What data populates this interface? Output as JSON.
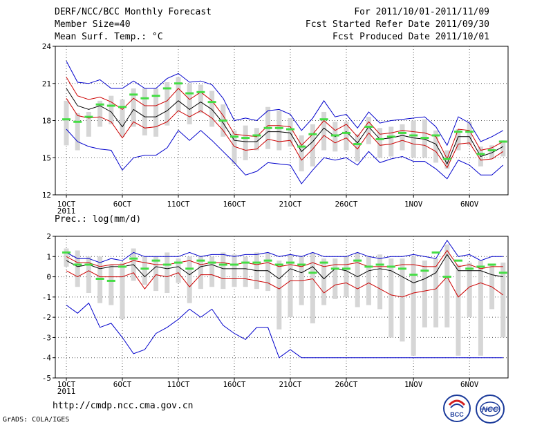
{
  "header": {
    "title": "DERF/NCC/BCC Monthly Forecast",
    "member": "Member Size=40",
    "variable": "Mean Surf. Temp.: °C",
    "period": "For 2011/10/01-2011/11/09",
    "fcst_started": "Fcst Started Refer Date 2011/09/30",
    "fcst_produced": "Fcst Produced Date 2011/10/01"
  },
  "colors": {
    "ensemble_max": "#0000cc",
    "ensemble_min": "#0000cc",
    "spread": "#cc0000",
    "mean": "#000000",
    "box": "#d6d6d6",
    "marker": "#44dd44"
  },
  "chart_data": [
    {
      "type": "line",
      "title": "Mean Surf. Temp.: °C",
      "ylim": [
        12,
        24
      ],
      "yticks": [
        12,
        15,
        18,
        21,
        24
      ],
      "xtick_labels": [
        "1OCT",
        "6OCT",
        "11OCT",
        "16OCT",
        "21OCT",
        "26OCT",
        "1NOV",
        "6NOV"
      ],
      "xtick_days": [
        1,
        6,
        11,
        16,
        21,
        26,
        32,
        37
      ],
      "year_label": "2011",
      "x_days": [
        1,
        2,
        3,
        4,
        5,
        6,
        7,
        8,
        9,
        10,
        11,
        12,
        13,
        14,
        15,
        16,
        17,
        18,
        19,
        20,
        21,
        22,
        23,
        24,
        25,
        26,
        27,
        28,
        29,
        30,
        31,
        32,
        33,
        34,
        35,
        36,
        37,
        38,
        39,
        40
      ],
      "series": [
        {
          "name": "max",
          "values": [
            22.8,
            21.1,
            21.0,
            21.3,
            20.6,
            20.6,
            21.2,
            20.6,
            20.6,
            21.4,
            21.8,
            21.1,
            21.2,
            20.9,
            19.8,
            18.0,
            18.2,
            18.0,
            18.8,
            18.9,
            18.5,
            17.2,
            18.2,
            19.6,
            18.3,
            18.5,
            17.4,
            18.7,
            17.8,
            18.0,
            18.1,
            18.2,
            18.3,
            17.5,
            16.0,
            18.3,
            17.8,
            16.3,
            16.7,
            17.2
          ]
        },
        {
          "name": "spread_upper",
          "values": [
            21.5,
            20.0,
            19.7,
            19.9,
            19.5,
            18.9,
            19.8,
            19.2,
            19.2,
            19.6,
            20.6,
            19.7,
            20.3,
            19.6,
            18.4,
            16.9,
            16.8,
            16.7,
            17.6,
            17.6,
            17.5,
            16.0,
            16.9,
            18.0,
            17.2,
            17.7,
            16.7,
            17.9,
            16.9,
            17.0,
            17.2,
            17.1,
            17.0,
            16.7,
            14.9,
            17.3,
            17.2,
            15.6,
            15.8,
            16.3
          ]
        },
        {
          "name": "mean",
          "values": [
            20.6,
            19.2,
            18.9,
            19.2,
            18.7,
            17.5,
            18.9,
            18.3,
            18.3,
            18.8,
            19.6,
            18.9,
            19.5,
            18.9,
            17.8,
            16.4,
            16.3,
            16.3,
            17.1,
            17.1,
            17.0,
            15.5,
            16.3,
            17.4,
            16.7,
            17.1,
            16.2,
            17.5,
            16.5,
            16.6,
            16.8,
            16.6,
            16.5,
            16.1,
            14.5,
            16.7,
            16.7,
            15.1,
            15.4,
            15.9
          ]
        },
        {
          "name": "spread_lower",
          "values": [
            19.8,
            18.4,
            18.2,
            18.3,
            17.9,
            16.6,
            17.9,
            17.4,
            17.5,
            17.9,
            18.8,
            18.3,
            18.8,
            18.2,
            17.2,
            15.9,
            15.6,
            15.7,
            16.5,
            16.3,
            16.4,
            14.8,
            15.7,
            16.8,
            16.2,
            16.6,
            15.7,
            17.0,
            16.0,
            16.1,
            16.4,
            16.1,
            16.0,
            15.5,
            14.2,
            16.1,
            16.2,
            14.8,
            14.9,
            15.5
          ]
        },
        {
          "name": "min",
          "values": [
            17.3,
            16.3,
            15.9,
            15.7,
            15.6,
            14.0,
            15.0,
            15.2,
            15.2,
            15.8,
            17.2,
            16.4,
            17.2,
            16.4,
            15.5,
            14.6,
            13.6,
            13.9,
            14.6,
            14.5,
            14.4,
            12.9,
            14.0,
            15.0,
            14.8,
            15.0,
            14.4,
            15.5,
            14.6,
            14.9,
            15.1,
            14.7,
            14.7,
            14.1,
            13.3,
            14.8,
            14.4,
            13.6,
            13.6,
            14.4
          ]
        },
        {
          "name": "box_top",
          "values": [
            19.6,
            18.6,
            18.7,
            19.6,
            20.0,
            19.7,
            20.6,
            20.6,
            20.6,
            21.1,
            21.5,
            21.0,
            20.9,
            20.4,
            19.3,
            17.2,
            17.6,
            17.4,
            19.1,
            18.8,
            18.2,
            16.8,
            17.7,
            18.7,
            17.9,
            17.9,
            16.9,
            18.3,
            17.4,
            17.5,
            17.7,
            18.0,
            18.1,
            17.2,
            15.6,
            17.3,
            17.9,
            15.9,
            16.0,
            16.4
          ]
        },
        {
          "name": "box_bottom",
          "values": [
            16.0,
            15.6,
            16.7,
            17.5,
            17.7,
            16.7,
            17.5,
            16.8,
            16.7,
            17.6,
            18.7,
            17.7,
            18.6,
            17.5,
            16.7,
            14.5,
            14.8,
            15.6,
            15.7,
            15.6,
            15.9,
            13.9,
            14.3,
            15.6,
            15.5,
            15.6,
            14.7,
            16.1,
            15.0,
            15.1,
            15.6,
            15.0,
            15.0,
            14.6,
            14.1,
            15.6,
            16.0,
            14.3,
            14.9,
            15.1
          ]
        },
        {
          "name": "marker",
          "values": [
            18.1,
            17.9,
            18.3,
            19.3,
            19.2,
            19.1,
            20.1,
            19.8,
            20.0,
            20.6,
            21.0,
            20.2,
            20.3,
            19.5,
            18.0,
            16.7,
            16.6,
            16.8,
            17.4,
            17.4,
            17.3,
            15.9,
            16.9,
            18.1,
            16.8,
            17.0,
            16.1,
            17.5,
            16.5,
            16.7,
            17.0,
            16.8,
            16.6,
            16.8,
            14.9,
            17.1,
            17.1,
            15.3,
            15.6,
            16.3
          ]
        }
      ]
    },
    {
      "type": "line",
      "title": "Prec.: log(mm/d)",
      "ylim": [
        -5,
        2
      ],
      "yticks": [
        -5,
        -4,
        -3,
        -2,
        -1,
        0,
        1,
        2
      ],
      "xtick_labels": [
        "1OCT",
        "6OCT",
        "11OCT",
        "16OCT",
        "21OCT",
        "26OCT",
        "1NOV",
        "6NOV"
      ],
      "xtick_days": [
        1,
        6,
        11,
        16,
        21,
        26,
        32,
        37
      ],
      "year_label": "2011",
      "x_days": [
        1,
        2,
        3,
        4,
        5,
        6,
        7,
        8,
        9,
        10,
        11,
        12,
        13,
        14,
        15,
        16,
        17,
        18,
        19,
        20,
        21,
        22,
        23,
        24,
        25,
        26,
        27,
        28,
        29,
        30,
        31,
        32,
        33,
        34,
        35,
        36,
        37,
        38,
        39,
        40
      ],
      "series": [
        {
          "name": "max",
          "values": [
            1.2,
            0.9,
            0.9,
            0.7,
            0.9,
            0.8,
            1.2,
            1.0,
            1.0,
            1.0,
            1.0,
            1.2,
            1.0,
            1.1,
            1.1,
            1.0,
            1.1,
            1.1,
            1.2,
            1.0,
            1.1,
            1.0,
            1.2,
            1.0,
            1.0,
            1.0,
            1.2,
            1.0,
            0.9,
            1.0,
            1.0,
            1.1,
            1.0,
            0.9,
            1.8,
            1.0,
            1.1,
            0.8,
            1.0,
            1.0
          ]
        },
        {
          "name": "spread_upper",
          "values": [
            1.0,
            0.7,
            0.7,
            0.5,
            0.6,
            0.6,
            0.8,
            0.7,
            0.6,
            0.6,
            0.7,
            0.8,
            0.6,
            0.7,
            0.7,
            0.6,
            0.7,
            0.6,
            0.7,
            0.5,
            0.6,
            0.5,
            0.7,
            0.5,
            0.6,
            0.6,
            0.7,
            0.5,
            0.5,
            0.5,
            0.6,
            0.6,
            0.5,
            0.5,
            1.3,
            0.5,
            0.6,
            0.4,
            0.5,
            0.5
          ]
        },
        {
          "name": "mean",
          "values": [
            0.8,
            0.5,
            0.6,
            0.4,
            0.5,
            0.5,
            0.6,
            0.0,
            0.5,
            0.4,
            0.5,
            0.1,
            0.5,
            0.6,
            0.4,
            0.4,
            0.4,
            0.3,
            0.3,
            -0.1,
            0.4,
            0.2,
            0.5,
            -0.1,
            0.4,
            0.3,
            0.0,
            0.3,
            0.4,
            0.3,
            0.0,
            -0.3,
            -0.1,
            0.2,
            1.1,
            0.3,
            0.3,
            0.3,
            0.1,
            0.0
          ]
        },
        {
          "name": "spread_lower",
          "values": [
            0.3,
            0.0,
            0.3,
            0.0,
            0.0,
            0.0,
            0.2,
            -0.6,
            0.1,
            0.0,
            0.2,
            -0.5,
            0.1,
            0.1,
            -0.1,
            -0.1,
            -0.1,
            -0.2,
            -0.3,
            -0.6,
            -0.2,
            -0.2,
            -0.1,
            -0.8,
            -0.4,
            -0.3,
            -0.6,
            -0.3,
            -0.6,
            -0.9,
            -1.0,
            -0.8,
            -0.7,
            -0.6,
            0.0,
            -1.0,
            -0.5,
            -0.3,
            -0.5,
            -0.9
          ]
        },
        {
          "name": "min",
          "values": [
            -1.4,
            -1.8,
            -1.3,
            -2.5,
            -2.3,
            -3.0,
            -3.8,
            -3.6,
            -2.8,
            -2.5,
            -2.1,
            -1.6,
            -2.0,
            -1.6,
            -2.4,
            -2.8,
            -3.1,
            -2.5,
            -2.5,
            -4.0,
            -3.6,
            -4.0,
            -4.0,
            -4.0,
            -4.0,
            -4.0,
            -4.0,
            -4.0,
            -4.0,
            -4.0,
            -4.0,
            -4.0,
            -4.0,
            -4.0,
            -4.0,
            -4.0,
            -4.0,
            -4.0,
            -4.0,
            -4.0
          ]
        },
        {
          "name": "box_top",
          "values": [
            1.4,
            1.3,
            1.0,
            1.0,
            0.6,
            0.7,
            1.4,
            1.0,
            1.0,
            1.2,
            0.9,
            1.0,
            1.0,
            1.0,
            1.2,
            1.1,
            1.0,
            1.2,
            1.2,
            0.8,
            1.1,
            1.0,
            1.2,
            0.9,
            0.9,
            1.0,
            1.2,
            1.0,
            1.1,
            0.9,
            0.9,
            1.0,
            0.8,
            0.9,
            1.6,
            0.6,
            0.7,
            0.8,
            0.6,
            0.7
          ]
        },
        {
          "name": "box_bottom",
          "values": [
            0.5,
            -0.5,
            -0.8,
            -1.3,
            -1.4,
            -2.1,
            -0.2,
            -0.4,
            -0.7,
            -0.8,
            -0.3,
            -1.3,
            -0.6,
            -0.5,
            -0.6,
            -0.5,
            -0.5,
            -0.6,
            -0.7,
            -2.6,
            -2.0,
            -1.4,
            -2.3,
            -1.4,
            -1.1,
            -1.0,
            -1.5,
            -1.4,
            -1.6,
            -3.0,
            -3.2,
            -3.9,
            -2.5,
            -2.5,
            -2.5,
            -3.9,
            -2.0,
            -3.9,
            -1.6,
            -3.0
          ]
        },
        {
          "name": "marker",
          "values": [
            1.2,
            0.6,
            0.6,
            -0.1,
            -0.2,
            0.5,
            0.9,
            0.4,
            0.8,
            0.6,
            0.7,
            0.4,
            0.8,
            0.7,
            0.6,
            0.6,
            0.7,
            0.7,
            0.8,
            0.6,
            0.7,
            0.6,
            0.2,
            0.7,
            0.4,
            0.4,
            0.8,
            0.5,
            0.6,
            0.5,
            0.4,
            0.1,
            0.3,
            1.2,
            0.0,
            0.8,
            0.4,
            0.5,
            0.6,
            0.2
          ]
        }
      ]
    }
  ],
  "footer": {
    "url": "http://cmdp.ncc.cma.gov.cn",
    "credit": "GrADS: COLA/IGES",
    "logo_left_text": "BCC",
    "logo_right_text": "NCC"
  }
}
